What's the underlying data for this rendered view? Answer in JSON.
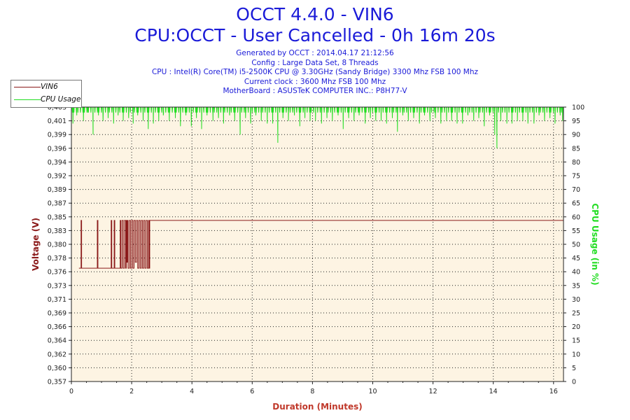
{
  "header": {
    "title": "OCCT 4.4.0 - VIN6",
    "subtitle": "CPU:OCCT - User Cancelled - 0h 16m 20s",
    "info_lines": [
      "Generated by OCCT : 2014.04.17 21:12:56",
      "Config : Large Data Set, 8 Threads",
      "CPU : Intel(R) Core(TM) i5-2500K CPU @ 3.30GHz (Sandy Bridge) 3300 Mhz FSB 100 Mhz",
      "Current clock : 3600 Mhz FSB 100 Mhz",
      "MotherBoard : ASUSTeK COMPUTER INC.: P8H77-V"
    ]
  },
  "colors": {
    "vin6": "#8b1a1a",
    "cpu_usage": "#22dd22",
    "plot_background": "#fdf4e3",
    "title": "#1a1ad8",
    "xlabel": "#c0392b"
  },
  "chart_data": {
    "type": "line",
    "xlabel": "Duration (Minutes)",
    "ylabel": "Voltage (V)",
    "y2label": "CPU Usage (in %)",
    "xlim": [
      0,
      16.33
    ],
    "ylim": [
      0.357,
      0.403
    ],
    "y2lim": [
      0,
      100
    ],
    "x_ticks": [
      "0",
      "2",
      "4",
      "6",
      "8",
      "10",
      "12",
      "14",
      "16"
    ],
    "y_ticks": [
      "0,357",
      "0,360",
      "0,362",
      "0,364",
      "0,366",
      "0,369",
      "0,371",
      "0,373",
      "0,376",
      "0,378",
      "0,380",
      "0,383",
      "0,385",
      "0,387",
      "0,389",
      "0,392",
      "0,394",
      "0,396",
      "0,399",
      "0,401",
      "0,403"
    ],
    "y2_ticks": [
      "0",
      "5",
      "10",
      "15",
      "20",
      "25",
      "30",
      "35",
      "40",
      "45",
      "50",
      "55",
      "60",
      "65",
      "70",
      "75",
      "80",
      "85",
      "90",
      "95",
      "100"
    ],
    "grid": true,
    "legend_position": "top-left",
    "series": [
      {
        "name": "VIN6",
        "axis": "left",
        "x": [
          0.3,
          0.32,
          0.34,
          0.36,
          0.84,
          0.86,
          0.88,
          1.3,
          1.32,
          1.34,
          1.36,
          1.4,
          1.42,
          1.44,
          1.46,
          1.6,
          1.62,
          1.64,
          1.68,
          1.72,
          1.76,
          1.8,
          1.82,
          1.84,
          1.86,
          1.88,
          1.92,
          1.96,
          2.0,
          2.04,
          2.08,
          2.12,
          2.16,
          2.2,
          2.24,
          2.28,
          2.32,
          2.36,
          2.4,
          2.44,
          2.48,
          2.52,
          2.56,
          2.58,
          2.6,
          2.62,
          16.33
        ],
        "values": [
          0.376,
          0.384,
          0.376,
          0.376,
          0.376,
          0.384,
          0.376,
          0.376,
          0.384,
          0.376,
          0.376,
          0.376,
          0.384,
          0.376,
          0.376,
          0.376,
          0.384,
          0.376,
          0.384,
          0.376,
          0.384,
          0.376,
          0.384,
          0.377,
          0.384,
          0.376,
          0.384,
          0.376,
          0.384,
          0.376,
          0.384,
          0.377,
          0.384,
          0.376,
          0.384,
          0.376,
          0.384,
          0.376,
          0.384,
          0.376,
          0.384,
          0.376,
          0.384,
          0.376,
          0.384,
          0.384,
          0.384
        ]
      },
      {
        "name": "CPU Usage",
        "axis": "right",
        "sampling": "near 100 % throughout with frequent brief dips",
        "baseline": 100,
        "dips": [
          [
            0.05,
            94
          ],
          [
            0.18,
            97
          ],
          [
            0.4,
            95
          ],
          [
            0.55,
            98
          ],
          [
            0.72,
            92
          ],
          [
            0.9,
            97
          ],
          [
            1.05,
            95
          ],
          [
            1.22,
            96
          ],
          [
            1.4,
            94
          ],
          [
            1.55,
            97
          ],
          [
            1.72,
            95
          ],
          [
            1.9,
            96
          ],
          [
            2.05,
            94
          ],
          [
            2.2,
            97
          ],
          [
            2.38,
            95
          ],
          [
            2.55,
            92
          ],
          [
            2.72,
            96
          ],
          [
            2.9,
            95
          ],
          [
            3.05,
            97
          ],
          [
            3.25,
            95
          ],
          [
            3.45,
            96
          ],
          [
            3.62,
            93
          ],
          [
            3.8,
            97
          ],
          [
            3.98,
            95
          ],
          [
            4.15,
            96
          ],
          [
            4.32,
            94
          ],
          [
            4.5,
            97
          ],
          [
            4.7,
            95
          ],
          [
            4.88,
            96
          ],
          [
            5.05,
            94
          ],
          [
            5.25,
            97
          ],
          [
            5.42,
            95
          ],
          [
            5.6,
            90
          ],
          [
            5.78,
            96
          ],
          [
            5.95,
            94
          ],
          [
            6.12,
            97
          ],
          [
            6.3,
            95
          ],
          [
            6.5,
            96
          ],
          [
            6.68,
            94
          ],
          [
            6.85,
            89
          ],
          [
            7.02,
            96
          ],
          [
            7.2,
            95
          ],
          [
            7.4,
            97
          ],
          [
            7.58,
            93
          ],
          [
            7.75,
            96
          ],
          [
            7.92,
            95
          ],
          [
            8.1,
            97
          ],
          [
            8.3,
            94
          ],
          [
            8.48,
            96
          ],
          [
            8.66,
            95
          ],
          [
            8.85,
            97
          ],
          [
            9.02,
            94
          ],
          [
            9.2,
            96
          ],
          [
            9.38,
            95
          ],
          [
            9.55,
            97
          ],
          [
            9.75,
            94
          ],
          [
            9.92,
            96
          ],
          [
            10.1,
            95
          ],
          [
            10.28,
            97
          ],
          [
            10.46,
            94
          ],
          [
            10.65,
            96
          ],
          [
            10.82,
            91
          ],
          [
            11.0,
            97
          ],
          [
            11.18,
            95
          ],
          [
            11.36,
            96
          ],
          [
            11.55,
            94
          ],
          [
            11.72,
            97
          ],
          [
            11.9,
            95
          ],
          [
            12.08,
            96
          ],
          [
            12.26,
            94
          ],
          [
            12.45,
            97
          ],
          [
            12.62,
            95
          ],
          [
            12.8,
            96
          ],
          [
            12.98,
            94
          ],
          [
            13.16,
            97
          ],
          [
            13.35,
            95
          ],
          [
            13.52,
            96
          ],
          [
            13.7,
            93
          ],
          [
            13.88,
            97
          ],
          [
            14.05,
            90
          ],
          [
            14.12,
            85
          ],
          [
            14.25,
            95
          ],
          [
            14.45,
            96
          ],
          [
            14.62,
            94
          ],
          [
            14.8,
            97
          ],
          [
            14.98,
            95
          ],
          [
            15.15,
            96
          ],
          [
            15.35,
            94
          ],
          [
            15.52,
            97
          ],
          [
            15.7,
            95
          ],
          [
            15.88,
            96
          ],
          [
            16.05,
            94
          ],
          [
            16.22,
            97
          ],
          [
            16.3,
            95
          ]
        ]
      }
    ]
  }
}
